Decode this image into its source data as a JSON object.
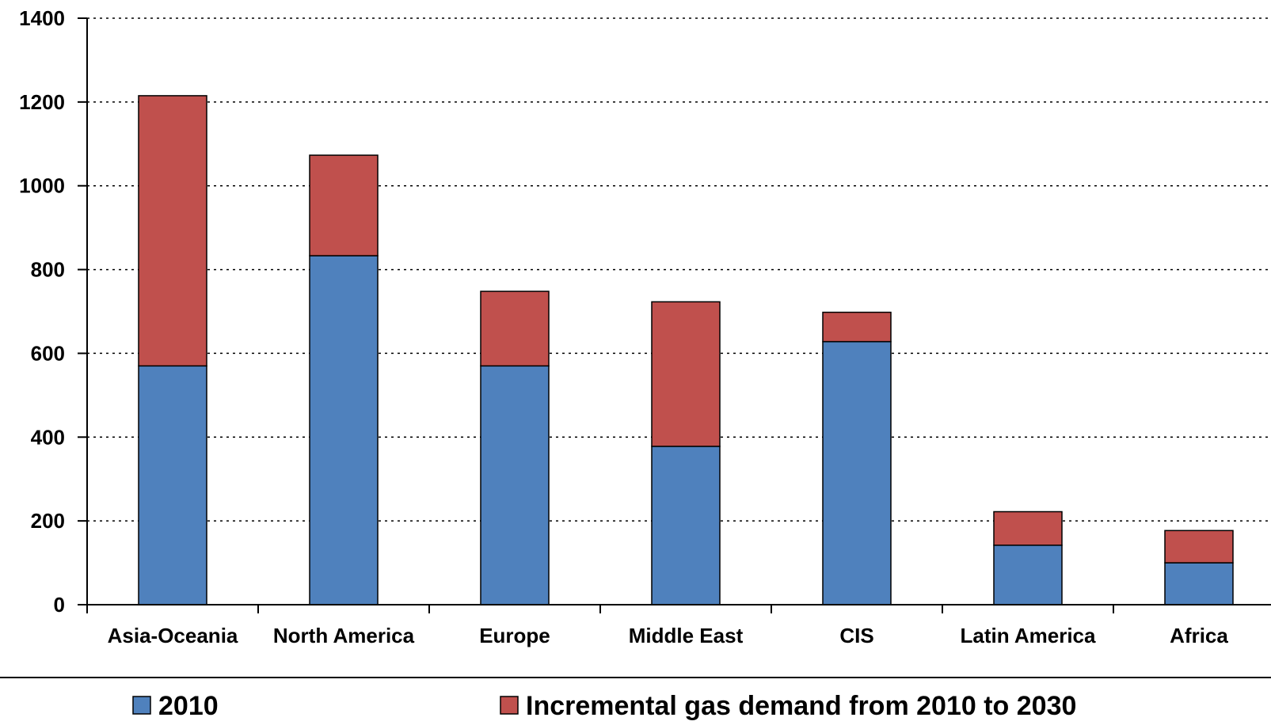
{
  "chart_data": {
    "type": "bar",
    "stacked": true,
    "categories": [
      "Asia-Oceania",
      "North America",
      "Europe",
      "Middle East",
      "CIS",
      "Latin America",
      "Africa"
    ],
    "series": [
      {
        "name": "2010",
        "color": "#4f81bd",
        "values": [
          570,
          833,
          570,
          378,
          628,
          142,
          100
        ]
      },
      {
        "name": "Incremental gas demand from 2010 to 2030",
        "color": "#c0504d",
        "values": [
          645,
          240,
          178,
          345,
          70,
          80,
          77
        ]
      }
    ],
    "y_ticks": [
      "0",
      "200",
      "400",
      "600",
      "800",
      "1000",
      "1200",
      "1400"
    ],
    "ylim": [
      0,
      1400
    ],
    "grid": "horizontal dotted",
    "legend_position": "bottom"
  }
}
